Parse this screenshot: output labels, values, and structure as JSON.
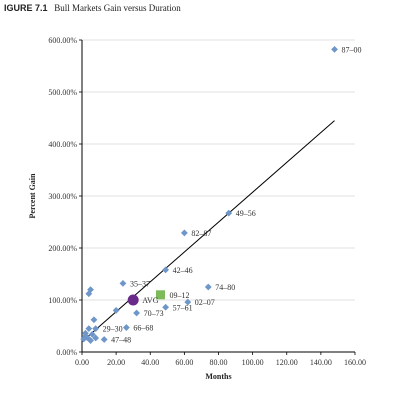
{
  "figure": {
    "number_label": "IGURE 7.1",
    "title": "Bull Markets Gain versus Duration"
  },
  "colors": {
    "point": "#6f96c8",
    "avg": "#6a2a8a",
    "current": "#7cba5a",
    "trend": "#000000",
    "axis": "#000000"
  },
  "chart_data": {
    "type": "scatter",
    "xlabel": "Months",
    "ylabel": "Percent Gain",
    "xlim": [
      0,
      160
    ],
    "ylim": [
      0,
      600
    ],
    "x_ticks": [
      "0.00",
      "20.00",
      "40.00",
      "60.00",
      "80.00",
      "100.00",
      "120.00",
      "140.00",
      "160.00"
    ],
    "y_ticks": [
      "0.00%",
      "100.00%",
      "200.00%",
      "300.00%",
      "400.00%",
      "500.00%",
      "600.00%"
    ],
    "points": [
      {
        "x": 148,
        "y": 582,
        "label": "87–00"
      },
      {
        "x": 86,
        "y": 267,
        "label": "49–56"
      },
      {
        "x": 60,
        "y": 229,
        "label": "82–87"
      },
      {
        "x": 49,
        "y": 158,
        "label": "42–46"
      },
      {
        "x": 74,
        "y": 125,
        "label": "74–80"
      },
      {
        "x": 24,
        "y": 132,
        "label": "35–37"
      },
      {
        "x": 62,
        "y": 96,
        "label": "02–07"
      },
      {
        "x": 49,
        "y": 86,
        "label": "57–61"
      },
      {
        "x": 32,
        "y": 75,
        "label": "70–73"
      },
      {
        "x": 8,
        "y": 45,
        "label": "29–30"
      },
      {
        "x": 26,
        "y": 47,
        "label": "66–68"
      },
      {
        "x": 13,
        "y": 24,
        "label": "47–48"
      },
      {
        "x": 4,
        "y": 112,
        "label": ""
      },
      {
        "x": 5,
        "y": 120,
        "label": ""
      },
      {
        "x": 20,
        "y": 80,
        "label": ""
      },
      {
        "x": 7,
        "y": 62,
        "label": ""
      },
      {
        "x": 4,
        "y": 45,
        "label": ""
      },
      {
        "x": 2,
        "y": 36,
        "label": ""
      },
      {
        "x": 3,
        "y": 28,
        "label": ""
      },
      {
        "x": 1,
        "y": 25,
        "label": ""
      },
      {
        "x": 5,
        "y": 22,
        "label": ""
      },
      {
        "x": 8,
        "y": 27,
        "label": ""
      },
      {
        "x": 2,
        "y": 30,
        "label": ""
      },
      {
        "x": 6,
        "y": 34,
        "label": ""
      }
    ],
    "avg_point": {
      "x": 30,
      "y": 100,
      "label": "AVG"
    },
    "current_point": {
      "x": 46,
      "y": 110,
      "label": "09–12"
    },
    "trendline": {
      "x1": 0,
      "y1": 20,
      "x2": 148,
      "y2": 445
    }
  }
}
